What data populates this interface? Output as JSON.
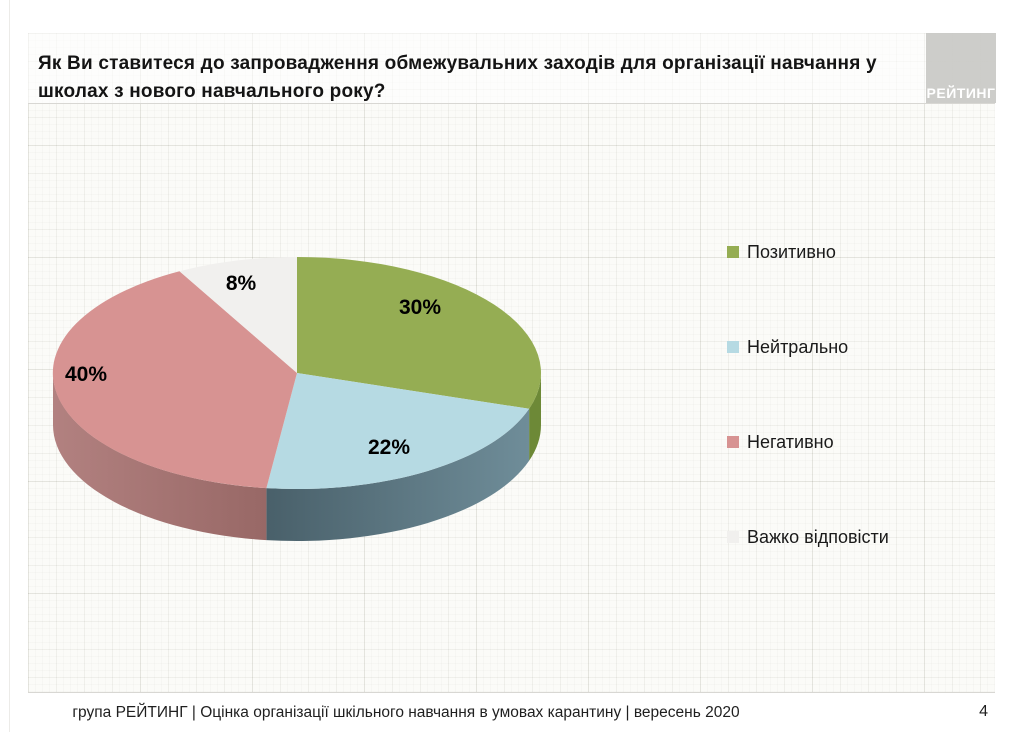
{
  "slide": {
    "title": "Як Ви ставитеся до запровадження обмежувальних заходів для організації навчання у школах з нового навчального року?",
    "logo_text": "РЕЙТИНГ",
    "footer": "група РЕЙТИНГ |  Оцінка організації шкільного навчання в умовах карантину | вересень  2020",
    "page_number": "4"
  },
  "chart_data": {
    "type": "pie",
    "style": "3d",
    "title": "",
    "start_angle_deg": 90,
    "direction": "clockwise",
    "legend_position": "right",
    "categories": [
      "Позитивно",
      "Нейтрально",
      "Негативно",
      "Важко відповісти"
    ],
    "values": [
      30,
      22,
      40,
      8
    ],
    "labels": [
      "30%",
      "22%",
      "40%",
      "8%"
    ],
    "slugs": [
      "positive",
      "neutral",
      "negative",
      "hard-to-say"
    ],
    "colors": [
      "#95ad53",
      "#b6dae3",
      "#d79392",
      "#f1f0ee"
    ],
    "side_gradients": [
      [
        "#6d8937",
        "#6d8937"
      ],
      [
        "#49606a",
        "#6f8d99"
      ],
      [
        "#b28180",
        "#986866"
      ],
      [
        "#d9d8d4",
        "#d9d8d4"
      ]
    ]
  }
}
